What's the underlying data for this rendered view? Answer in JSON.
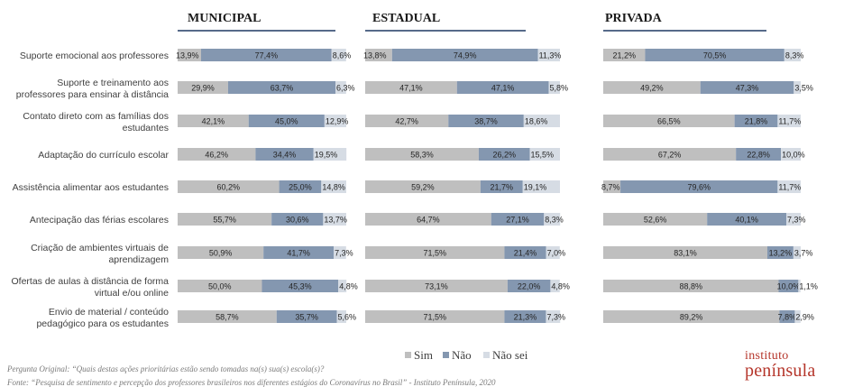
{
  "chart_data": {
    "type": "bar",
    "stacked": true,
    "orientation": "horizontal",
    "categories": [
      "Suporte emocional aos professores",
      "Suporte e treinamento aos professores para ensinar à distância",
      "Contato direto com as famílias dos estudantes",
      "Adaptação do currículo escolar",
      "Assistência alimentar aos estudantes",
      "Antecipação das férias escolares",
      "Criação de ambientes virtuais de aprendizagem",
      "Ofertas de aulas à distância de forma virtual e/ou online",
      "Envio de material / conteúdo pedagógico para os estudantes"
    ],
    "category_lines": [
      [
        "Suporte emocional aos professores"
      ],
      [
        "Suporte e treinamento aos",
        "professores para ensinar à distância"
      ],
      [
        "Contato direto com as famílias dos",
        "estudantes"
      ],
      [
        "Adaptação do currículo escolar"
      ],
      [
        "Assistência alimentar aos estudantes"
      ],
      [
        "Antecipação das férias escolares"
      ],
      [
        "Criação de ambientes virtuais de",
        "aprendizagem"
      ],
      [
        "Ofertas de aulas à distância de forma",
        "virtual e/ou online"
      ],
      [
        "Envio de material / conteúdo",
        "pedagógico para os estudantes"
      ]
    ],
    "panels": [
      {
        "title": "MUNICIPAL",
        "series": [
          {
            "name": "Sim",
            "values": [
              13.9,
              29.9,
              42.1,
              46.2,
              60.2,
              55.7,
              50.9,
              50.0,
              58.7
            ]
          },
          {
            "name": "Não",
            "values": [
              77.4,
              63.7,
              45.0,
              34.4,
              25.0,
              30.6,
              41.7,
              45.3,
              35.7
            ]
          },
          {
            "name": "Não sei",
            "values": [
              8.6,
              6.3,
              12.9,
              19.5,
              14.8,
              13.7,
              7.3,
              4.8,
              5.6
            ]
          }
        ]
      },
      {
        "title": "ESTADUAL",
        "series": [
          {
            "name": "Sim",
            "values": [
              13.8,
              47.1,
              42.7,
              58.3,
              59.2,
              64.7,
              71.5,
              73.1,
              71.5
            ]
          },
          {
            "name": "Não",
            "values": [
              74.9,
              47.1,
              38.7,
              26.2,
              21.7,
              27.1,
              21.4,
              22.0,
              21.3
            ]
          },
          {
            "name": "Não sei",
            "values": [
              11.3,
              5.8,
              18.6,
              15.5,
              19.1,
              8.3,
              7.0,
              4.8,
              7.3
            ]
          }
        ]
      },
      {
        "title": "PRIVADA",
        "series": [
          {
            "name": "Sim",
            "values": [
              21.2,
              49.2,
              66.5,
              67.2,
              8.7,
              52.6,
              83.1,
              88.8,
              89.2
            ]
          },
          {
            "name": "Não",
            "values": [
              70.5,
              47.3,
              21.8,
              22.8,
              79.6,
              40.1,
              13.2,
              10.0,
              7.8
            ]
          },
          {
            "name": "Não sei",
            "values": [
              8.3,
              3.5,
              11.7,
              10.0,
              11.7,
              7.3,
              3.7,
              1.1,
              2.9
            ]
          }
        ]
      }
    ],
    "legend": [
      "Sim",
      "Não",
      "Não sei"
    ],
    "legend_position": "bottom-center",
    "xlim": [
      0,
      100
    ],
    "grid": false,
    "colors": {
      "Sim": "#bfbfbf",
      "Não": "#8497b0",
      "Não sei": "#d6dce4"
    }
  },
  "footnotes": {
    "question": "Pergunta Original: “Quais destas ações prioritárias estão sendo tomadas na(s) sua(s) escola(s)?",
    "source": "Fonte: “Pesquisa de sentimento e percepção dos professores brasileiros nos diferentes estágios do Coronavírus no Brasil” - Instituto Península, 2020"
  },
  "logo": {
    "line1": "instituto",
    "line2": "península"
  },
  "colors": {
    "title": "#1a1a1a",
    "underline": "#1f3864",
    "label": "#404040",
    "logo": "#b5352a"
  }
}
